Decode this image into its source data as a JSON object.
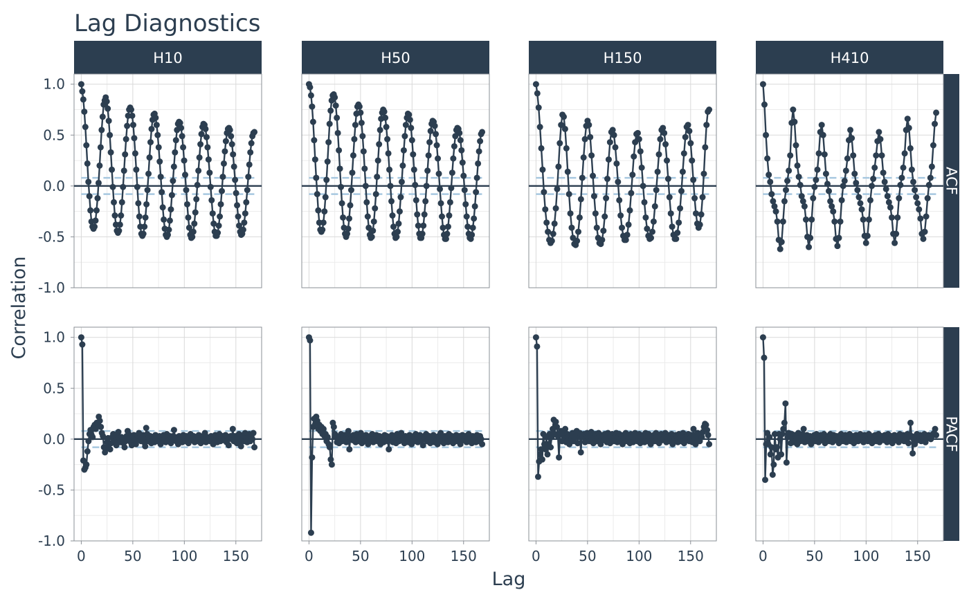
{
  "chart_data": {
    "type": "line",
    "title": "Lag Diagnostics",
    "xlabel": "Lag",
    "ylabel": "Correlation",
    "columns": [
      "H10",
      "H50",
      "H150",
      "H410"
    ],
    "rows": [
      "ACF",
      "PACF"
    ],
    "xlim": [
      -7,
      175
    ],
    "ylim": [
      -1.0,
      1.1
    ],
    "x_ticks": [
      0,
      50,
      100,
      150
    ],
    "x_tick_labels": [
      "0",
      "50",
      "100",
      "150"
    ],
    "y_ticks": [
      -1.0,
      -0.5,
      0.0,
      0.5,
      1.0
    ],
    "y_tick_labels": [
      "-1.0",
      "-0.5",
      "0.0",
      "0.5",
      "1.0"
    ],
    "max_lag": 168,
    "confidence_band": 0.08,
    "grid": true,
    "colors": {
      "series": "#2c3e50",
      "band": "#a6c8e0",
      "strip": "#2c3e50",
      "grid": "#d9d9d9"
    },
    "acf": {
      "H10": [
        1.0,
        0.93,
        0.85,
        0.73,
        0.58,
        0.4,
        0.22,
        0.04,
        -0.1,
        -0.24,
        -0.35,
        -0.4,
        -0.42,
        -0.4,
        -0.34,
        -0.24,
        -0.12,
        0.03,
        0.2,
        0.38,
        0.55,
        0.68,
        0.8,
        0.84,
        0.87,
        0.83,
        0.76,
        0.64,
        0.5,
        0.33,
        0.16,
        -0.01,
        -0.16,
        -0.29,
        -0.38,
        -0.44,
        -0.46,
        -0.44,
        -0.38,
        -0.29,
        -0.16,
        -0.01,
        0.15,
        0.31,
        0.46,
        0.59,
        0.69,
        0.75,
        0.77,
        0.75,
        0.69,
        0.6,
        0.47,
        0.32,
        0.16,
        -0.01,
        -0.17,
        -0.3,
        -0.4,
        -0.47,
        -0.49,
        -0.47,
        -0.4,
        -0.31,
        -0.18,
        -0.04,
        0.12,
        0.28,
        0.43,
        0.56,
        0.65,
        0.7,
        0.71,
        0.67,
        0.6,
        0.5,
        0.38,
        0.24,
        0.09,
        -0.06,
        -0.21,
        -0.33,
        -0.42,
        -0.48,
        -0.5,
        -0.48,
        -0.43,
        -0.34,
        -0.23,
        -0.09,
        0.05,
        0.19,
        0.33,
        0.45,
        0.55,
        0.61,
        0.63,
        0.62,
        0.57,
        0.49,
        0.38,
        0.25,
        0.11,
        -0.04,
        -0.18,
        -0.31,
        -0.41,
        -0.48,
        -0.51,
        -0.5,
        -0.45,
        -0.37,
        -0.26,
        -0.13,
        0.01,
        0.15,
        0.28,
        0.41,
        0.51,
        0.58,
        0.61,
        0.6,
        0.56,
        0.48,
        0.38,
        0.26,
        0.13,
        -0.01,
        -0.14,
        -0.27,
        -0.37,
        -0.45,
        -0.49,
        -0.49,
        -0.46,
        -0.39,
        -0.3,
        -0.18,
        -0.05,
        0.09,
        0.22,
        0.34,
        0.44,
        0.52,
        0.56,
        0.57,
        0.55,
        0.49,
        0.41,
        0.31,
        0.19,
        0.06,
        -0.07,
        -0.19,
        -0.3,
        -0.39,
        -0.45,
        -0.48,
        -0.47,
        -0.43,
        -0.36,
        -0.27,
        -0.16,
        -0.04,
        0.09,
        0.21,
        0.33,
        0.42,
        0.49,
        0.52,
        0.53
      ],
      "H50": [
        1.0,
        0.97,
        0.89,
        0.78,
        0.63,
        0.45,
        0.26,
        0.08,
        -0.08,
        -0.24,
        -0.36,
        -0.43,
        -0.45,
        -0.43,
        -0.36,
        -0.25,
        -0.11,
        0.06,
        0.24,
        0.43,
        0.61,
        0.74,
        0.84,
        0.89,
        0.9,
        0.87,
        0.79,
        0.67,
        0.52,
        0.35,
        0.17,
        -0.01,
        -0.17,
        -0.31,
        -0.41,
        -0.47,
        -0.5,
        -0.47,
        -0.42,
        -0.32,
        -0.19,
        -0.04,
        0.13,
        0.3,
        0.46,
        0.6,
        0.71,
        0.78,
        0.8,
        0.78,
        0.72,
        0.62,
        0.49,
        0.34,
        0.17,
        0.0,
        -0.16,
        -0.3,
        -0.41,
        -0.48,
        -0.51,
        -0.5,
        -0.44,
        -0.35,
        -0.22,
        -0.08,
        0.09,
        0.25,
        0.41,
        0.55,
        0.66,
        0.72,
        0.75,
        0.73,
        0.67,
        0.58,
        0.46,
        0.32,
        0.16,
        0.0,
        -0.15,
        -0.29,
        -0.4,
        -0.47,
        -0.51,
        -0.5,
        -0.45,
        -0.37,
        -0.25,
        -0.11,
        0.04,
        0.2,
        0.35,
        0.49,
        0.6,
        0.67,
        0.71,
        0.7,
        0.65,
        0.57,
        0.45,
        0.31,
        0.16,
        0.01,
        -0.14,
        -0.28,
        -0.39,
        -0.47,
        -0.51,
        -0.51,
        -0.47,
        -0.39,
        -0.28,
        -0.15,
        0.0,
        0.15,
        0.3,
        0.43,
        0.54,
        0.61,
        0.64,
        0.63,
        0.59,
        0.51,
        0.4,
        0.27,
        0.12,
        -0.03,
        -0.17,
        -0.3,
        -0.41,
        -0.48,
        -0.52,
        -0.52,
        -0.47,
        -0.4,
        -0.29,
        -0.16,
        -0.02,
        0.13,
        0.27,
        0.39,
        0.49,
        0.55,
        0.57,
        0.56,
        0.52,
        0.45,
        0.35,
        0.23,
        0.1,
        -0.04,
        -0.18,
        -0.3,
        -0.4,
        -0.47,
        -0.51,
        -0.52,
        -0.48,
        -0.41,
        -0.32,
        -0.2,
        -0.06,
        0.08,
        0.22,
        0.34,
        0.44,
        0.51,
        0.53
      ],
      "H150": [
        1.0,
        0.91,
        0.77,
        0.58,
        0.37,
        0.16,
        -0.06,
        -0.23,
        -0.36,
        -0.45,
        -0.53,
        -0.56,
        -0.54,
        -0.47,
        -0.37,
        -0.22,
        -0.03,
        0.19,
        0.42,
        0.6,
        0.7,
        0.68,
        0.56,
        0.37,
        0.14,
        -0.08,
        -0.27,
        -0.41,
        -0.51,
        -0.57,
        -0.58,
        -0.54,
        -0.45,
        -0.31,
        -0.13,
        0.08,
        0.28,
        0.46,
        0.59,
        0.64,
        0.6,
        0.48,
        0.3,
        0.1,
        -0.1,
        -0.27,
        -0.41,
        -0.51,
        -0.56,
        -0.57,
        -0.53,
        -0.44,
        -0.3,
        -0.12,
        0.07,
        0.26,
        0.43,
        0.53,
        0.55,
        0.5,
        0.38,
        0.22,
        0.04,
        -0.14,
        -0.29,
        -0.41,
        -0.49,
        -0.53,
        -0.53,
        -0.48,
        -0.38,
        -0.24,
        -0.07,
        0.11,
        0.29,
        0.43,
        0.51,
        0.52,
        0.46,
        0.34,
        0.18,
        0.0,
        -0.16,
        -0.31,
        -0.42,
        -0.49,
        -0.52,
        -0.51,
        -0.45,
        -0.35,
        -0.2,
        -0.04,
        0.14,
        0.31,
        0.46,
        0.55,
        0.57,
        0.52,
        0.41,
        0.25,
        0.07,
        -0.11,
        -0.27,
        -0.4,
        -0.48,
        -0.52,
        -0.52,
        -0.46,
        -0.36,
        -0.22,
        -0.05,
        0.14,
        0.32,
        0.48,
        0.58,
        0.6,
        0.54,
        0.42,
        0.25,
        0.06,
        -0.12,
        -0.27,
        -0.37,
        -0.41,
        -0.38,
        -0.28,
        -0.11,
        0.12,
        0.38,
        0.6,
        0.73,
        0.75
      ],
      "H410": [
        1.0,
        0.8,
        0.5,
        0.27,
        0.11,
        0.04,
        -0.08,
        -0.15,
        -0.2,
        -0.25,
        -0.35,
        -0.53,
        -0.62,
        -0.55,
        -0.35,
        -0.15,
        -0.04,
        0.05,
        0.15,
        0.3,
        0.62,
        0.75,
        0.63,
        0.4,
        0.2,
        0.09,
        0.01,
        -0.1,
        -0.15,
        -0.2,
        -0.33,
        -0.5,
        -0.6,
        -0.51,
        -0.33,
        -0.12,
        -0.01,
        0.06,
        0.16,
        0.32,
        0.53,
        0.6,
        0.5,
        0.31,
        0.12,
        0.02,
        -0.05,
        -0.15,
        -0.2,
        -0.25,
        -0.35,
        -0.52,
        -0.59,
        -0.51,
        -0.35,
        -0.14,
        0.0,
        0.05,
        0.15,
        0.27,
        0.45,
        0.55,
        0.47,
        0.3,
        0.12,
        0.03,
        -0.04,
        -0.11,
        -0.17,
        -0.23,
        -0.33,
        -0.49,
        -0.56,
        -0.49,
        -0.33,
        -0.14,
        0.0,
        0.07,
        0.18,
        0.3,
        0.44,
        0.53,
        0.46,
        0.3,
        0.13,
        0.04,
        -0.03,
        -0.1,
        -0.16,
        -0.21,
        -0.31,
        -0.47,
        -0.56,
        -0.47,
        -0.31,
        -0.12,
        0.01,
        0.08,
        0.18,
        0.32,
        0.55,
        0.66,
        0.57,
        0.37,
        0.16,
        0.04,
        -0.04,
        -0.11,
        -0.17,
        -0.23,
        -0.32,
        -0.47,
        -0.52,
        -0.45,
        -0.3,
        -0.12,
        0.01,
        0.08,
        0.19,
        0.4,
        0.61,
        0.72
      ]
    },
    "pacf": {
      "H10": [
        1.0,
        0.93,
        -0.21,
        -0.3,
        -0.28,
        -0.25,
        -0.12,
        -0.02,
        0.05,
        0.09,
        0.04,
        0.02,
        0.12,
        0.14,
        0.1,
        0.16,
        0.15,
        0.22,
        0.18,
        0.12,
        0.06,
        0.03,
        -0.08,
        -0.13,
        -0.09,
        -0.03,
        0.01,
        -0.05,
        -0.1,
        -0.04,
        0.02,
        0.05,
        0.03,
        -0.02,
        -0.06,
        0.04,
        0.07,
        0.01,
        -0.03,
        0.02,
        0.0,
        -0.04,
        -0.08,
        -0.02,
        0.03,
        0.08,
        0.05,
        0.01,
        -0.03,
        -0.06,
        0.02,
        0.04,
        -0.01,
        -0.05,
        0.0,
        0.03,
        0.06,
        0.02,
        -0.02,
        0.01,
        0.04,
        -0.03,
        -0.07,
        0.11,
        0.05,
        -0.02,
        0.01,
        0.03,
        -0.04,
        0.02,
        0.0,
        -0.03,
        0.04,
        0.01,
        -0.02,
        0.02,
        0.03,
        -0.05,
        -0.01,
        0.02,
        0.04,
        0.0,
        -0.03,
        0.05,
        0.02,
        -0.01,
        0.03,
        -0.04,
        0.01,
        0.03,
        0.09,
        0.02,
        -0.02,
        0.01,
        -0.05,
        0.03,
        0.0,
        0.02,
        -0.03,
        0.04,
        0.01,
        -0.02,
        0.03,
        0.0,
        -0.04,
        0.02,
        0.05,
        -0.01,
        0.01,
        0.03,
        -0.03,
        0.02,
        0.0,
        -0.02,
        0.04,
        0.01,
        -0.04,
        0.02,
        0.03,
        -0.01,
        0.06,
        -0.03,
        0.02,
        0.0,
        0.01,
        -0.02,
        0.03,
        0.02,
        -0.05,
        0.01,
        0.04,
        0.0,
        -0.03,
        0.02,
        0.05,
        -0.02,
        0.01,
        0.03,
        -0.01,
        0.0,
        0.04,
        -0.03,
        0.02,
        -0.06,
        0.01,
        0.03,
        0.0,
        0.1,
        -0.02,
        0.03,
        0.01,
        -0.04,
        0.02,
        0.05,
        0.0,
        -0.07,
        0.02,
        0.04,
        -0.02,
        0.06,
        0.01,
        -0.03,
        0.02,
        0.05,
        -0.02,
        0.03,
        0.0,
        0.06,
        -0.08
      ],
      "H50": [
        1.0,
        0.97,
        -0.92,
        -0.18,
        0.12,
        0.2,
        0.15,
        0.22,
        0.18,
        0.1,
        0.14,
        0.08,
        0.12,
        0.05,
        0.1,
        0.03,
        0.05,
        -0.02,
        0.02,
        -0.05,
        -0.08,
        -0.2,
        -0.25,
        0.16,
        0.12,
        0.05,
        0.02,
        -0.03,
        0.01,
        -0.04,
        0.03,
        0.05,
        -0.02,
        0.02,
        0.04,
        0.01,
        -0.03,
        0.05,
        0.08,
        -0.1,
        0.02,
        0.03,
        -0.01,
        0.04,
        0.0,
        -0.03,
        0.05,
        0.02,
        -0.02,
        0.01,
        0.06,
        -0.04,
        0.03,
        0.0,
        -0.02,
        0.04,
        0.01,
        -0.05,
        0.02,
        0.03,
        -0.01,
        0.05,
        -0.03,
        0.02,
        0.0,
        0.04,
        -0.02,
        0.01,
        0.03,
        -0.05,
        0.02,
        0.0,
        -0.03,
        0.04,
        0.01,
        0.03,
        -0.02,
        -0.1,
        0.02,
        0.01,
        0.04,
        -0.03,
        0.0,
        0.02,
        -0.04,
        0.05,
        0.01,
        -0.02,
        0.03,
        0.06,
        -0.01,
        0.02,
        -0.04,
        0.03,
        0.0,
        0.01,
        -0.03,
        0.04,
        0.02,
        -0.05,
        0.01,
        0.03,
        -0.02,
        0.05,
        0.0,
        -0.03,
        0.02,
        0.04,
        -0.01,
        0.02,
        -0.06,
        0.03,
        0.01,
        0.05,
        -0.02,
        0.0,
        0.03,
        -0.04,
        0.01,
        0.02,
        0.04,
        -0.03,
        0.02,
        0.0,
        -0.05,
        0.03,
        0.01,
        0.06,
        -0.02,
        0.02,
        -0.04,
        0.03,
        0.0,
        0.01,
        -0.03,
        0.05,
        0.02,
        -0.01,
        0.03,
        -0.04,
        0.02,
        0.0,
        0.04,
        -0.02,
        0.01,
        0.03,
        -0.05,
        0.02,
        0.04,
        -0.01,
        0.0,
        0.03,
        -0.03,
        0.02,
        0.05,
        -0.02,
        0.01,
        -0.04,
        0.03,
        0.0,
        0.02,
        -0.03,
        0.04,
        0.01,
        -0.02,
        0.03,
        0.0,
        -0.05
      ],
      "H150": [
        1.0,
        0.91,
        -0.37,
        -0.22,
        -0.15,
        -0.1,
        -0.2,
        0.05,
        -0.05,
        -0.1,
        0.02,
        -0.15,
        -0.05,
        0.05,
        -0.08,
        0.02,
        0.1,
        0.19,
        0.05,
        0.17,
        0.12,
        0.03,
        -0.18,
        0.05,
        0.08,
        -0.02,
        0.06,
        0.02,
        0.1,
        -0.03,
        0.05,
        0.02,
        -0.05,
        0.04,
        0.0,
        0.06,
        -0.02,
        0.05,
        0.02,
        0.08,
        -0.04,
        0.03,
        0.06,
        -0.13,
        0.04,
        0.02,
        0.05,
        -0.03,
        0.03,
        0.06,
        0.0,
        -0.02,
        0.04,
        0.07,
        0.02,
        -0.04,
        0.03,
        0.05,
        -0.02,
        0.01,
        0.06,
        0.03,
        -0.05,
        0.02,
        0.04,
        -0.01,
        0.05,
        0.02,
        -0.03,
        0.06,
        0.01,
        -0.04,
        0.03,
        0.05,
        0.0,
        -0.02,
        0.04,
        0.06,
        -0.03,
        0.02,
        0.05,
        -0.01,
        0.03,
        -0.05,
        0.04,
        0.01,
        0.06,
        -0.02,
        0.03,
        0.0,
        -0.04,
        0.05,
        0.02,
        -0.03,
        0.04,
        0.06,
        0.01,
        -0.02,
        0.03,
        0.05,
        -0.04,
        0.02,
        0.0,
        0.04,
        -0.03,
        0.06,
        0.01,
        -0.02,
        0.05,
        0.02,
        -0.05,
        0.03,
        0.0,
        0.04,
        -0.02,
        0.06,
        0.01,
        0.03,
        -0.04,
        0.02,
        0.05,
        -0.01,
        0.0,
        0.03,
        0.06,
        -0.03,
        0.02,
        0.04,
        -0.02,
        0.01,
        0.05,
        -0.05,
        0.03,
        0.0,
        0.04,
        0.02,
        -0.03,
        0.05,
        0.01,
        -0.02,
        0.04,
        0.06,
        -0.04,
        0.02,
        0.0,
        0.03,
        0.05,
        -0.02,
        0.01,
        0.04,
        -0.03,
        0.1,
        0.02,
        -0.05,
        0.03,
        0.06,
        0.0,
        -0.02,
        0.04,
        0.02,
        0.07,
        0.12,
        0.15,
        0.14,
        0.09,
        0.04,
        -0.05
      ],
      "H410": [
        1.0,
        0.8,
        -0.4,
        -0.05,
        0.06,
        -0.05,
        0.02,
        -0.15,
        -0.08,
        -0.35,
        -0.25,
        0.05,
        -0.1,
        -0.08,
        -0.18,
        0.05,
        0.0,
        -0.15,
        0.05,
        0.1,
        0.16,
        0.35,
        -0.23,
        0.02,
        0.06,
        0.02,
        -0.04,
        0.05,
        0.01,
        -0.03,
        0.04,
        0.02,
        -0.05,
        0.06,
        0.01,
        -0.02,
        0.03,
        0.05,
        0.1,
        -0.03,
        0.02,
        0.04,
        -0.02,
        0.01,
        0.03,
        -0.05,
        0.02,
        0.0,
        0.04,
        -0.02,
        0.05,
        0.01,
        -0.03,
        0.02,
        0.04,
        -0.01,
        0.03,
        0.05,
        -0.04,
        0.02,
        0.0,
        0.03,
        -0.02,
        0.05,
        0.01,
        -0.03,
        0.04,
        0.02,
        -0.01,
        0.03,
        0.0,
        -0.04,
        0.02,
        0.05,
        0.01,
        -0.02,
        0.03,
        0.04,
        -0.03,
        0.02,
        0.0,
        0.05,
        -0.02,
        0.01,
        0.03,
        -0.04,
        0.02,
        0.04,
        0.0,
        -0.02,
        0.03,
        0.05,
        -0.01,
        0.02,
        -0.03,
        0.04,
        0.01,
        0.03,
        -0.02,
        0.05,
        0.0,
        0.02,
        -0.04,
        0.03,
        0.01,
        0.04,
        -0.02,
        0.02,
        0.05,
        -0.03,
        0.0,
        0.03,
        0.02,
        -0.01,
        0.04,
        0.01,
        -0.03,
        0.05,
        0.02,
        0.0,
        0.03,
        -0.04,
        0.02,
        0.04,
        -0.01,
        0.01,
        0.03,
        -0.03,
        0.05,
        0.02,
        0.0,
        0.04,
        -0.02,
        0.01,
        0.03,
        0.05,
        -0.04,
        0.02,
        0.16,
        0.03,
        -0.14,
        0.0,
        -0.05,
        0.02,
        0.05,
        -0.01,
        0.03,
        0.04,
        -0.02,
        0.02,
        0.0,
        0.05,
        -0.03,
        0.03,
        0.01,
        0.04,
        0.02,
        0.0,
        0.03,
        0.05,
        0.06,
        0.1,
        0.04
      ]
    }
  }
}
